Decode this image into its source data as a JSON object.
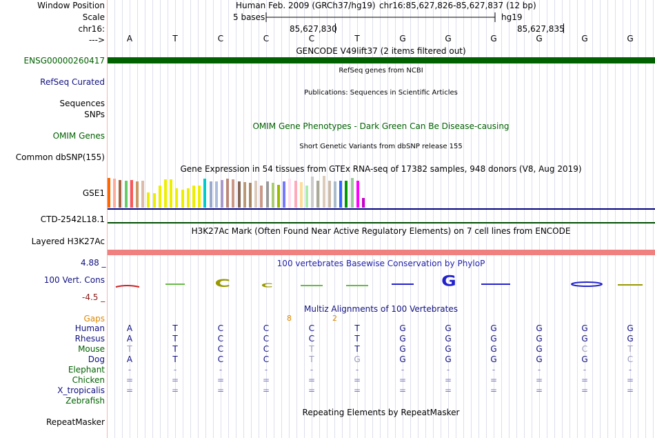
{
  "header": {
    "window_position_label": "Window Position",
    "scale_label": "Scale",
    "chr_label": "chr16:",
    "arrow_label": "--->",
    "assembly": "Human Feb. 2009 (GRCh37/hg19)",
    "coords": "chr16:85,627,826-85,627,837 (12 bp)",
    "scale_text": "5 bases",
    "scale_db": "hg19",
    "pos1": "85,627,830",
    "pos2": "85,627,835"
  },
  "sequence": [
    "A",
    "T",
    "C",
    "C",
    "C",
    "T",
    "G",
    "G",
    "G",
    "G",
    "G",
    "G"
  ],
  "tracks": {
    "gencode": {
      "title": "GENCODE V49lift37 (2 items filtered out)",
      "item": "ENSG00000260417",
      "color": "#006100"
    },
    "refseq": {
      "title": "RefSeq genes from NCBI",
      "label": "RefSeq Curated"
    },
    "publications": {
      "title": "Publications: Sequences in Scientific Articles",
      "label1": "Sequences",
      "label2": "SNPs"
    },
    "omim": {
      "title": "OMIM Gene Phenotypes - Dark Green Can Be Disease-causing",
      "label": "OMIM Genes"
    },
    "dbsnp": {
      "title": "Short Genetic Variants from dbSNP release 155",
      "label": "Common dbSNP(155)"
    },
    "gtex": {
      "title": "Gene Expression in 54 tissues from GTEx RNA-seq of 17382 samples, 948 donors (V8, Aug 2019)",
      "label": "GSE1",
      "label2": "CTD-2542L18.1",
      "bar_levels": [
        0.92,
        0.9,
        0.86,
        0.84,
        0.86,
        0.8,
        0.84,
        0.46,
        0.45,
        0.68,
        0.88,
        0.88,
        0.6,
        0.56,
        0.6,
        0.68,
        0.68,
        0.9,
        0.8,
        0.8,
        0.86,
        0.9,
        0.88,
        0.8,
        0.78,
        0.76,
        0.84,
        0.68,
        0.8,
        0.76,
        0.7,
        0.8,
        0.9,
        0.82,
        0.78,
        0.68,
        0.96,
        0.82,
        0.98,
        0.82,
        0.8,
        0.82,
        0.82,
        0.92,
        0.84,
        0.3
      ],
      "bar_colors": [
        "#FF6600",
        "#FFAA99",
        "#AA6644",
        "#66CC66",
        "#FF5555",
        "#CC9966",
        "#DDBBAA",
        "#EEEE00",
        "#EEEE00",
        "#EEEE00",
        "#EEEE00",
        "#EEEE00",
        "#EEEE00",
        "#EEEE00",
        "#EEEE00",
        "#EEEE00",
        "#EEEE00",
        "#00CCCC",
        "#99AACC",
        "#AABBDD",
        "#AA99CC",
        "#BB8877",
        "#CC9988",
        "#886655",
        "#BB9977",
        "#AA8866",
        "#DDCCBB",
        "#CC9988",
        "#999999",
        "#AACC77",
        "#99BB00",
        "#7777FF",
        "#FFDDEE",
        "#FFAABB",
        "#FFDD99",
        "#AAEEAA",
        "#CCCCCC",
        "#AAAA99",
        "#DDCCBB",
        "#CCBBAA",
        "#AABBCC",
        "#3366FF",
        "#009900",
        "#99CC99",
        "#FF00FF",
        "#CC00CC"
      ]
    },
    "h3k27ac": {
      "title": "H3K27Ac Mark (Often Found Near Active Regulatory Elements) on 7 cell lines from ENCODE",
      "label": "Layered H3K27Ac"
    },
    "cons": {
      "title": "100 vertebrates Basewise Conservation by PhyloP",
      "label": "100 Vert. Cons",
      "ymax": "4.88 _",
      "ymin": "-4.5 _"
    },
    "multiz": {
      "title": "Multiz Alignments of 100 Vertebrates",
      "gaps_label": "Gaps",
      "gaps": [
        "8",
        "2"
      ],
      "species": [
        {
          "name": "Human",
          "seq": [
            "A",
            "T",
            "C",
            "C",
            "C",
            "T",
            "G",
            "G",
            "G",
            "G",
            "G",
            "G"
          ]
        },
        {
          "name": "Rhesus",
          "seq": [
            "A",
            "T",
            "C",
            "C",
            "C",
            "T",
            "G",
            "G",
            "G",
            "G",
            "G",
            "G"
          ]
        },
        {
          "name": "Mouse",
          "seq": [
            "T",
            "T",
            "C",
            "C",
            "T",
            "T",
            "G",
            "G",
            "G",
            "G",
            "C",
            "T"
          ]
        },
        {
          "name": "Dog",
          "seq": [
            "A",
            "T",
            "C",
            "C",
            "T",
            "G",
            "G",
            "G",
            "G",
            "G",
            "G",
            "C"
          ]
        },
        {
          "name": "Elephant",
          "seq": [
            "-",
            "-",
            "-",
            "-",
            "-",
            "-",
            "-",
            "-",
            "-",
            "-",
            "-",
            "-"
          ]
        },
        {
          "name": "Chicken",
          "seq": [
            "=",
            "=",
            "=",
            "=",
            "=",
            "=",
            "=",
            "=",
            "=",
            "=",
            "=",
            "="
          ]
        },
        {
          "name": "X_tropicalis",
          "seq": [
            "=",
            "=",
            "=",
            "=",
            "=",
            "=",
            "=",
            "=",
            "=",
            "=",
            "=",
            "="
          ]
        },
        {
          "name": "Zebrafish",
          "seq": []
        }
      ]
    },
    "repeatmasker": {
      "title": "Repeating Elements by RepeatMasker",
      "label": "RepeatMasker"
    }
  },
  "colors": {
    "species_label": "#006100",
    "species_label_blue": "#101080",
    "aligned_base": "#101080",
    "mismatch_base": "#9999bb",
    "gaps": "#dd8800",
    "cons_blue": "#2222cc",
    "cons_olive": "#999900",
    "h3k27ac_bar": "#f08080",
    "navy_line": "#000080"
  }
}
